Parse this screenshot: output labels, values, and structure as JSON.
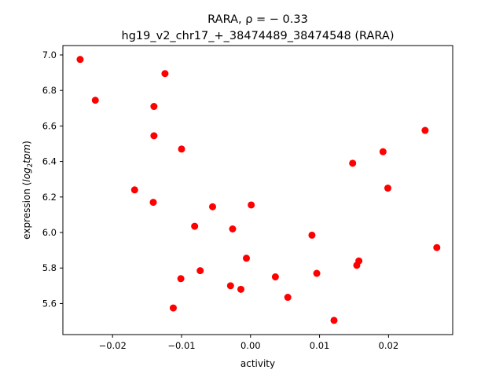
{
  "chart_data": {
    "type": "scatter",
    "title_line1": "RARA, ρ = − 0.33",
    "title_line2": "hg19_v2_chr17_+_38474489_38474548 (RARA)",
    "xlabel": "activity",
    "ylabel_prefix": "expression (",
    "ylabel_log": "log",
    "ylabel_sub": "2",
    "ylabel_tpm": "tpm",
    "ylabel_suffix": ")",
    "xlim": [
      -0.0272,
      0.0293
    ],
    "ylim": [
      5.425,
      7.053
    ],
    "xticks": [
      -0.02,
      -0.01,
      0.0,
      0.01,
      0.02
    ],
    "xtick_labels": [
      "−0.02",
      "−0.01",
      "0.00",
      "0.01",
      "0.02"
    ],
    "yticks": [
      5.6,
      5.8,
      6.0,
      6.2,
      6.4,
      6.6,
      6.8,
      7.0
    ],
    "ytick_labels": [
      "5.6",
      "5.8",
      "6.0",
      "6.2",
      "6.4",
      "6.6",
      "6.8",
      "7.0"
    ],
    "marker_color": "#ff0000",
    "grid": false,
    "points": [
      {
        "x": -0.0247,
        "y": 6.975
      },
      {
        "x": -0.0225,
        "y": 6.745
      },
      {
        "x": -0.0124,
        "y": 6.895
      },
      {
        "x": -0.014,
        "y": 6.71
      },
      {
        "x": -0.014,
        "y": 6.545
      },
      {
        "x": -0.01,
        "y": 6.47
      },
      {
        "x": -0.0168,
        "y": 6.24
      },
      {
        "x": -0.0141,
        "y": 6.17
      },
      {
        "x": -0.0055,
        "y": 6.145
      },
      {
        "x": 0.0001,
        "y": 6.155
      },
      {
        "x": -0.0081,
        "y": 6.035
      },
      {
        "x": -0.0026,
        "y": 6.02
      },
      {
        "x": -0.0006,
        "y": 5.855
      },
      {
        "x": -0.0073,
        "y": 5.785
      },
      {
        "x": -0.0101,
        "y": 5.74
      },
      {
        "x": -0.0029,
        "y": 5.7
      },
      {
        "x": -0.0014,
        "y": 5.68
      },
      {
        "x": -0.0112,
        "y": 5.575
      },
      {
        "x": 0.0036,
        "y": 5.75
      },
      {
        "x": 0.0054,
        "y": 5.635
      },
      {
        "x": 0.0089,
        "y": 5.985
      },
      {
        "x": 0.0096,
        "y": 5.77
      },
      {
        "x": 0.0121,
        "y": 5.505
      },
      {
        "x": 0.0148,
        "y": 6.39
      },
      {
        "x": 0.0154,
        "y": 5.815
      },
      {
        "x": 0.0157,
        "y": 5.84
      },
      {
        "x": 0.0192,
        "y": 6.455
      },
      {
        "x": 0.0199,
        "y": 6.25
      },
      {
        "x": 0.0253,
        "y": 6.575
      },
      {
        "x": 0.027,
        "y": 5.915
      }
    ]
  }
}
